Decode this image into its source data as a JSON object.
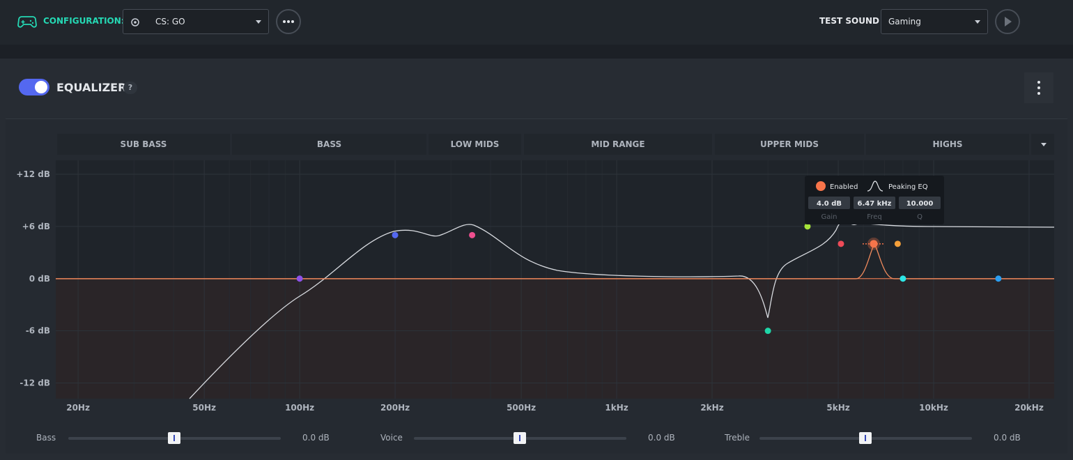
{
  "top_bar": {
    "configuration_label": "CONFIGURATION:",
    "configuration_value": "CS: GO",
    "test_sound_label": "TEST SOUND",
    "test_sound_value": "Gaming"
  },
  "equalizer": {
    "title": "EQUALIZER",
    "help": "?",
    "bands": [
      "SUB BASS",
      "BASS",
      "LOW MIDS",
      "MID RANGE",
      "UPPER MIDS",
      "HIGHS"
    ],
    "graph": {
      "log_x": true,
      "xlim": [
        17,
        24000
      ],
      "ylim": [
        -13.8,
        13.6
      ],
      "yticks": [
        {
          "value": 12,
          "label": "+12 dB"
        },
        {
          "value": 6,
          "label": "+6 dB"
        },
        {
          "value": 0,
          "label": "0 dB"
        },
        {
          "value": -6,
          "label": "-6 dB"
        },
        {
          "value": -12,
          "label": "-12 dB"
        }
      ],
      "xticks": [
        {
          "value": 20,
          "label": "20Hz"
        },
        {
          "value": 50,
          "label": "50Hz"
        },
        {
          "value": 100,
          "label": "100Hz"
        },
        {
          "value": 200,
          "label": "200Hz"
        },
        {
          "value": 500,
          "label": "500Hz"
        },
        {
          "value": 1000,
          "label": "1kHz"
        },
        {
          "value": 2000,
          "label": "2kHz"
        },
        {
          "value": 5000,
          "label": "5kHz"
        },
        {
          "value": 10000,
          "label": "10kHz"
        },
        {
          "value": 20000,
          "label": "20kHz"
        }
      ],
      "xminor": [
        30,
        40,
        60,
        70,
        80,
        90,
        300,
        400,
        600,
        700,
        800,
        900,
        3000,
        4000,
        6000,
        7000,
        8000,
        9000
      ],
      "points": [
        {
          "freq": 100,
          "gain": 0,
          "color": "#8e52e8"
        },
        {
          "freq": 200,
          "gain": 5,
          "color": "#5468f0"
        },
        {
          "freq": 350,
          "gain": 5,
          "color": "#ef4f8f"
        },
        {
          "freq": 3000,
          "gain": -6,
          "color": "#1fd6a8"
        },
        {
          "freq": 4000,
          "gain": 6,
          "color": "#a6e33a"
        },
        {
          "freq": 5100,
          "gain": 4,
          "color": "#ef4b58"
        },
        {
          "freq": 6470,
          "gain": 4,
          "color": "#f7744a"
        },
        {
          "freq": 7700,
          "gain": 4,
          "color": "#f5a03a"
        },
        {
          "freq": 8000,
          "gain": 0,
          "color": "#2ee6e6"
        },
        {
          "freq": 16000,
          "gain": 0,
          "color": "#2b9ef0"
        }
      ],
      "selected_point": 6
    },
    "tooltip": {
      "status": "Enabled",
      "filter": "Peaking EQ",
      "gain": "4.0 dB",
      "freq": "6.47 kHz",
      "q": "10.000",
      "gain_label": "Gain",
      "freq_label": "Freq",
      "q_label": "Q"
    },
    "sliders": [
      {
        "label": "Bass",
        "value": "0.0 dB"
      },
      {
        "label": "Voice",
        "value": "0.0 dB"
      },
      {
        "label": "Treble",
        "value": "0.0 dB"
      }
    ]
  }
}
